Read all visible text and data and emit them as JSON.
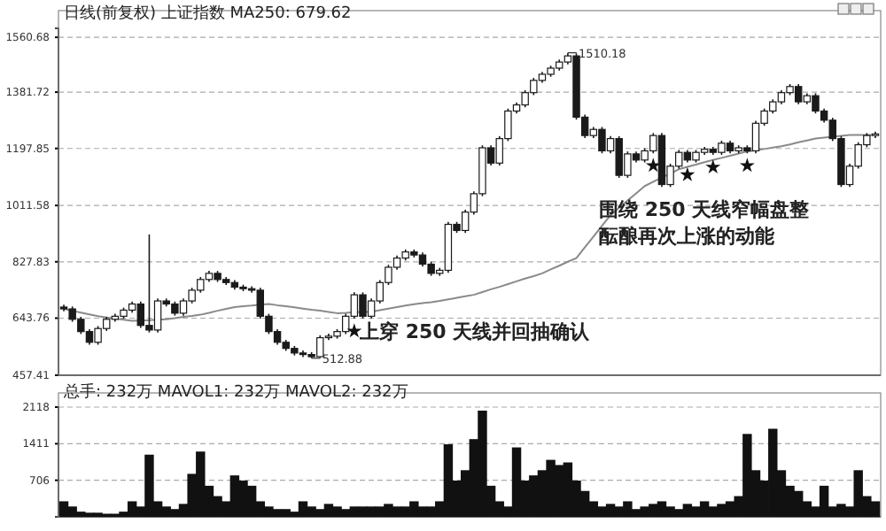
{
  "chart_data": [
    {
      "type": "candlestick",
      "title": "日线(前复权)  上证指数  MA250: 679.62",
      "color": "#1a1a1a",
      "categories": [
        null,
        null,
        null,
        null,
        null,
        null,
        null,
        null,
        null,
        null,
        null,
        null,
        null,
        null,
        null,
        null,
        null,
        null,
        null,
        null,
        null,
        null,
        null,
        null,
        null,
        null,
        null,
        null,
        null,
        null,
        null,
        null,
        null,
        null,
        null,
        null,
        null,
        null,
        null,
        null,
        null,
        null,
        null,
        null,
        null,
        null,
        null,
        null,
        null,
        null,
        null,
        null,
        null,
        null,
        null,
        null,
        null,
        null,
        null,
        null,
        null,
        null,
        null,
        null,
        null,
        null,
        null,
        null,
        null,
        null,
        null,
        null,
        null,
        null,
        null,
        null,
        null,
        null,
        null,
        null,
        null,
        null,
        null,
        null,
        null,
        null,
        null,
        null,
        null,
        null,
        null,
        null,
        null,
        null,
        null,
        null
      ],
      "ohlc": [
        [
          680,
          688,
          666,
          674
        ],
        [
          674,
          682,
          632,
          640
        ],
        [
          640,
          648,
          592,
          600
        ],
        [
          600,
          608,
          557,
          565
        ],
        [
          565,
          618,
          557,
          610
        ],
        [
          610,
          648,
          602,
          640
        ],
        [
          640,
          658,
          632,
          650
        ],
        [
          650,
          678,
          642,
          670
        ],
        [
          670,
          698,
          662,
          690
        ],
        [
          690,
          698,
          612,
          620
        ],
        [
          620,
          917,
          597,
          605
        ],
        [
          605,
          708,
          597,
          700
        ],
        [
          700,
          708,
          682,
          690
        ],
        [
          690,
          698,
          652,
          660
        ],
        [
          660,
          708,
          652,
          700
        ],
        [
          700,
          743,
          692,
          735
        ],
        [
          735,
          778,
          727,
          770
        ],
        [
          770,
          798,
          762,
          790
        ],
        [
          790,
          798,
          762,
          770
        ],
        [
          770,
          778,
          752,
          760
        ],
        [
          760,
          768,
          737,
          745
        ],
        [
          745,
          753,
          732,
          740
        ],
        [
          740,
          748,
          727,
          735
        ],
        [
          735,
          743,
          642,
          650
        ],
        [
          650,
          658,
          592,
          600
        ],
        [
          600,
          608,
          557,
          565
        ],
        [
          565,
          573,
          537,
          545
        ],
        [
          545,
          553,
          522,
          530
        ],
        [
          530,
          538,
          517,
          525
        ],
        [
          525,
          533,
          512.88,
          518
        ],
        [
          518,
          588,
          515,
          580
        ],
        [
          580,
          593,
          572,
          585
        ],
        [
          585,
          608,
          577,
          600
        ],
        [
          600,
          658,
          592,
          650
        ],
        [
          650,
          728,
          642,
          720
        ],
        [
          720,
          728,
          642,
          650
        ],
        [
          650,
          708,
          642,
          700
        ],
        [
          700,
          768,
          692,
          760
        ],
        [
          760,
          818,
          752,
          810
        ],
        [
          810,
          848,
          802,
          840
        ],
        [
          840,
          868,
          832,
          860
        ],
        [
          860,
          868,
          842,
          850
        ],
        [
          850,
          858,
          812,
          820
        ],
        [
          820,
          828,
          782,
          790
        ],
        [
          790,
          808,
          782,
          800
        ],
        [
          800,
          958,
          792,
          950
        ],
        [
          950,
          958,
          922,
          930
        ],
        [
          930,
          998,
          922,
          990
        ],
        [
          990,
          1058,
          982,
          1050
        ],
        [
          1050,
          1208,
          1042,
          1200
        ],
        [
          1200,
          1208,
          1142,
          1150
        ],
        [
          1150,
          1238,
          1142,
          1230
        ],
        [
          1230,
          1328,
          1222,
          1320
        ],
        [
          1320,
          1348,
          1312,
          1340
        ],
        [
          1340,
          1388,
          1332,
          1380
        ],
        [
          1380,
          1428,
          1372,
          1420
        ],
        [
          1420,
          1448,
          1412,
          1440
        ],
        [
          1440,
          1468,
          1432,
          1460
        ],
        [
          1460,
          1488,
          1452,
          1480
        ],
        [
          1480,
          1510.18,
          1472,
          1500
        ],
        [
          1500,
          1508,
          1292,
          1300
        ],
        [
          1300,
          1308,
          1232,
          1240
        ],
        [
          1240,
          1268,
          1232,
          1260
        ],
        [
          1260,
          1268,
          1182,
          1190
        ],
        [
          1190,
          1238,
          1182,
          1230
        ],
        [
          1230,
          1238,
          1102,
          1110
        ],
        [
          1110,
          1188,
          1102,
          1180
        ],
        [
          1180,
          1188,
          1152,
          1160
        ],
        [
          1160,
          1198,
          1152,
          1190
        ],
        [
          1190,
          1248,
          1182,
          1240
        ],
        [
          1240,
          1248,
          1072,
          1080
        ],
        [
          1080,
          1148,
          1072,
          1140
        ],
        [
          1140,
          1193,
          1132,
          1185
        ],
        [
          1185,
          1193,
          1152,
          1160
        ],
        [
          1160,
          1193,
          1152,
          1185
        ],
        [
          1185,
          1203,
          1177,
          1195
        ],
        [
          1195,
          1203,
          1177,
          1185
        ],
        [
          1185,
          1223,
          1177,
          1215
        ],
        [
          1215,
          1223,
          1182,
          1190
        ],
        [
          1190,
          1208,
          1182,
          1200
        ],
        [
          1200,
          1208,
          1182,
          1190
        ],
        [
          1190,
          1288,
          1182,
          1280
        ],
        [
          1280,
          1328,
          1272,
          1320
        ],
        [
          1320,
          1358,
          1312,
          1350
        ],
        [
          1350,
          1388,
          1342,
          1380
        ],
        [
          1380,
          1408,
          1372,
          1400
        ],
        [
          1400,
          1408,
          1342,
          1350
        ],
        [
          1350,
          1378,
          1342,
          1370
        ],
        [
          1370,
          1378,
          1312,
          1320
        ],
        [
          1320,
          1328,
          1282,
          1290
        ],
        [
          1290,
          1298,
          1222,
          1230
        ],
        [
          1230,
          1238,
          1072,
          1080
        ],
        [
          1080,
          1148,
          1072,
          1140
        ],
        [
          1140,
          1218,
          1132,
          1210
        ],
        [
          1210,
          1248,
          1202,
          1240
        ],
        [
          1240,
          1253,
          1232,
          1245
        ]
      ],
      "series": [
        {
          "type": "line",
          "color": "#8a8a8a",
          "values": [
            674,
            668,
            662,
            656,
            650,
            646,
            642,
            639,
            635,
            636,
            637,
            639,
            640,
            644,
            648,
            651,
            655,
            661,
            668,
            674,
            680,
            683,
            685,
            688,
            690,
            686,
            683,
            679,
            675,
            671,
            668,
            664,
            660,
            661,
            663,
            664,
            665,
            670,
            675,
            680,
            685,
            689,
            693,
            696,
            700,
            705,
            710,
            715,
            720,
            729,
            738,
            746,
            755,
            764,
            773,
            781,
            790,
            803,
            815,
            828,
            840,
            875,
            910,
            945,
            980,
            1004,
            1028,
            1051,
            1075,
            1089,
            1103,
            1116,
            1130,
            1138,
            1145,
            1153,
            1160,
            1167,
            1174,
            1181,
            1188,
            1192,
            1196,
            1201,
            1205,
            1211,
            1218,
            1224,
            1230,
            1233,
            1236,
            1239,
            1242,
            1242,
            1242,
            1242
          ]
        }
      ],
      "ylim": [
        457.41,
        1590
      ],
      "yticks": [
        457.41,
        643.76,
        827.83,
        1011.58,
        1197.85,
        1381.72,
        1560.68
      ],
      "grid": "y",
      "tick_labels": "y",
      "annotations": [
        "1510.18",
        "512.88",
        "上穿 250 天线并回抽确认",
        "围绕 250 天线窄幅盘整",
        "酝酿再次上涨的动能"
      ]
    },
    {
      "type": "bar",
      "title": "总手: 232万  MAVOL1: 232万  MAVOL2: 232万",
      "color": "#111111",
      "categories": [
        null,
        null,
        null,
        null,
        null,
        null,
        null,
        null,
        null,
        null,
        null,
        null,
        null,
        null,
        null,
        null,
        null,
        null,
        null,
        null,
        null,
        null,
        null,
        null,
        null,
        null,
        null,
        null,
        null,
        null,
        null,
        null,
        null,
        null,
        null,
        null,
        null,
        null,
        null,
        null,
        null,
        null,
        null,
        null,
        null,
        null,
        null,
        null,
        null,
        null,
        null,
        null,
        null,
        null,
        null,
        null,
        null,
        null,
        null,
        null,
        null,
        null,
        null,
        null,
        null,
        null,
        null,
        null,
        null,
        null,
        null,
        null,
        null,
        null,
        null,
        null,
        null,
        null,
        null,
        null,
        null,
        null,
        null,
        null,
        null,
        null,
        null,
        null,
        null,
        null,
        null,
        null,
        null,
        null,
        null,
        null
      ],
      "values": [
        300,
        200,
        100,
        80,
        80,
        60,
        60,
        100,
        300,
        200,
        1200,
        300,
        200,
        150,
        250,
        830,
        1260,
        600,
        400,
        300,
        800,
        700,
        600,
        300,
        200,
        150,
        150,
        100,
        300,
        200,
        150,
        250,
        200,
        150,
        200,
        200,
        200,
        200,
        250,
        200,
        200,
        300,
        200,
        200,
        300,
        1400,
        700,
        900,
        1500,
        2050,
        600,
        300,
        200,
        1340,
        700,
        800,
        900,
        1100,
        1000,
        1050,
        700,
        500,
        300,
        200,
        250,
        200,
        300,
        150,
        200,
        250,
        300,
        200,
        150,
        250,
        200,
        300,
        200,
        250,
        300,
        400,
        1600,
        900,
        700,
        1700,
        900,
        600,
        500,
        300,
        200,
        600,
        200,
        250,
        200,
        900,
        400,
        300
      ],
      "ylim": [
        0,
        2118
      ],
      "yticks": [
        706,
        1411,
        2118
      ],
      "grid": "y",
      "tick_labels": "y"
    }
  ]
}
